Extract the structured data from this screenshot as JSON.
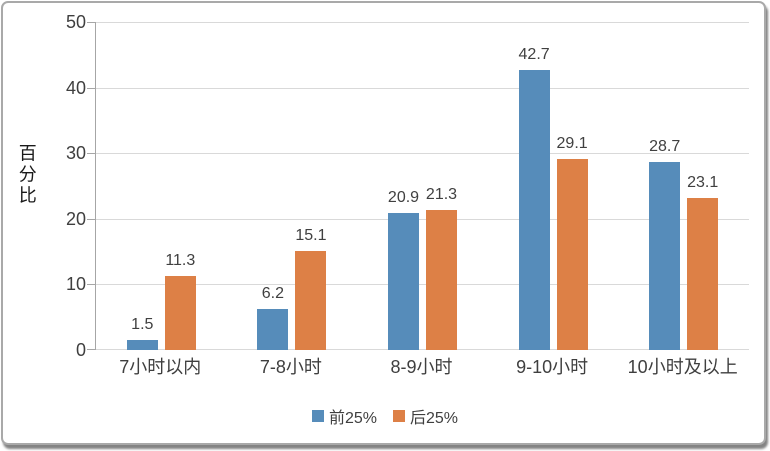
{
  "chart_data": {
    "type": "bar",
    "title": "",
    "ylabel": "百分比",
    "xlabel": "",
    "categories": [
      "7小时以内",
      "7-8小时",
      "8-9小时",
      "9-10小时",
      "10小时及以上"
    ],
    "series": [
      {
        "name": "前25%",
        "color": "#568cba",
        "values": [
          1.5,
          6.2,
          20.9,
          42.7,
          28.7
        ]
      },
      {
        "name": "后25%",
        "color": "#dd8046",
        "values": [
          11.3,
          15.1,
          21.3,
          29.1,
          23.1
        ]
      }
    ],
    "ylim": [
      0,
      50
    ],
    "ytick_step": 10,
    "ytick_labels": [
      "0",
      "10",
      "20",
      "30",
      "40",
      "50"
    ],
    "grid": true,
    "data_labels": true,
    "legend_position": "bottom"
  },
  "colors": {
    "gridline": "#d9d9d9",
    "axis_line": "#a6a6a6",
    "axis_text": "#3f3f3f",
    "label_text": "#404040",
    "frame_border": "#a9a9a9",
    "background": "#ffffff"
  }
}
